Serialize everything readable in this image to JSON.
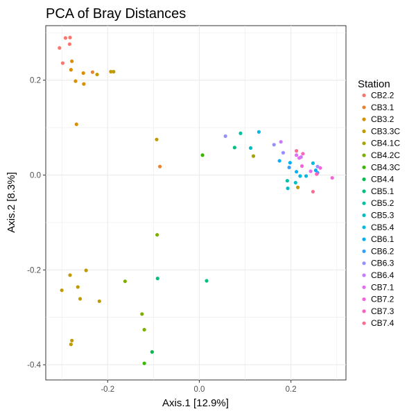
{
  "chart_data": {
    "type": "scatter",
    "title": "PCA of Bray Distances",
    "xlabel": "Axis.1   [12.9%]",
    "ylabel": "Axis.2   [8.3%]",
    "xlim": [
      -0.335,
      0.32
    ],
    "ylim": [
      -0.432,
      0.315
    ],
    "x_ticks": [
      -0.2,
      0.0,
      0.2
    ],
    "x_tick_labels": [
      "-0.2",
      "0.0",
      "0.2"
    ],
    "y_ticks": [
      0.2,
      0.0,
      -0.2,
      -0.4
    ],
    "y_tick_labels": [
      "0.2",
      "0.0",
      "-0.2",
      "-0.4"
    ],
    "grid": true,
    "legend_title": "Station",
    "legend_position": "right",
    "series": [
      {
        "name": "CB2.2",
        "color": "#F8766D",
        "points": [
          [
            -0.305,
            0.268
          ],
          [
            -0.292,
            0.289
          ],
          [
            -0.282,
            0.29
          ],
          [
            -0.298,
            0.236
          ],
          [
            -0.283,
            0.276
          ]
        ]
      },
      {
        "name": "CB3.1",
        "color": "#EA8331",
        "points": [
          [
            -0.233,
            0.217
          ],
          [
            -0.086,
            0.018
          ]
        ]
      },
      {
        "name": "CB3.2",
        "color": "#D89000",
        "points": [
          [
            -0.278,
            0.24
          ],
          [
            -0.253,
            0.215
          ],
          [
            -0.252,
            0.192
          ],
          [
            -0.27,
            0.198
          ],
          [
            -0.28,
            0.222
          ],
          [
            -0.268,
            0.107
          ]
        ]
      },
      {
        "name": "CB3.3C",
        "color": "#C09B00",
        "points": [
          [
            -0.193,
            0.218
          ],
          [
            -0.187,
            0.218
          ],
          [
            -0.223,
            0.212
          ],
          [
            -0.093,
            0.075
          ],
          [
            -0.3,
            -0.243
          ],
          [
            -0.282,
            -0.211
          ],
          [
            -0.247,
            -0.201
          ],
          [
            -0.265,
            -0.236
          ],
          [
            -0.26,
            -0.261
          ],
          [
            -0.218,
            -0.266
          ],
          [
            -0.278,
            -0.349
          ],
          [
            -0.28,
            -0.357
          ],
          [
            0.215,
            -0.026
          ]
        ]
      },
      {
        "name": "CB4.1C",
        "color": "#A3A500",
        "points": [
          [
            0.118,
            0.04
          ]
        ]
      },
      {
        "name": "CB4.2C",
        "color": "#7CAE00",
        "points": [
          [
            -0.092,
            -0.126
          ],
          [
            -0.162,
            -0.224
          ],
          [
            -0.125,
            -0.293
          ],
          [
            -0.12,
            -0.326
          ]
        ]
      },
      {
        "name": "CB4.3C",
        "color": "#39B600",
        "points": [
          [
            0.007,
            0.042
          ],
          [
            -0.12,
            -0.397
          ]
        ]
      },
      {
        "name": "CB4.4",
        "color": "#00BB4E",
        "points": [
          [
            -0.103,
            -0.373
          ]
        ]
      },
      {
        "name": "CB5.1",
        "color": "#00BF7D",
        "points": [
          [
            0.077,
            0.058
          ],
          [
            -0.091,
            -0.218
          ],
          [
            0.016,
            -0.223
          ]
        ]
      },
      {
        "name": "CB5.2",
        "color": "#00C1A3",
        "points": [
          [
            0.09,
            0.088
          ],
          [
            0.192,
            -0.012
          ]
        ]
      },
      {
        "name": "CB5.3",
        "color": "#00BFC4",
        "points": [
          [
            0.112,
            0.057
          ],
          [
            0.193,
            -0.028
          ],
          [
            0.21,
            -0.016
          ]
        ]
      },
      {
        "name": "CB5.4",
        "color": "#00BAE0",
        "points": [
          [
            0.13,
            0.091
          ],
          [
            0.22,
            -0.002
          ],
          [
            0.233,
            -0.002
          ],
          [
            0.248,
            0.025
          ]
        ]
      },
      {
        "name": "CB6.1",
        "color": "#00B0F6",
        "points": [
          [
            0.175,
            0.03
          ],
          [
            0.198,
            0.026
          ],
          [
            0.212,
            0.007
          ],
          [
            0.254,
            0.01
          ]
        ]
      },
      {
        "name": "CB6.2",
        "color": "#35A2FF",
        "points": [
          [
            0.196,
            0.016
          ],
          [
            0.258,
            0.005
          ]
        ]
      },
      {
        "name": "CB6.3",
        "color": "#9590FF",
        "points": [
          [
            0.057,
            0.082
          ],
          [
            0.163,
            0.064
          ],
          [
            0.183,
            0.047
          ],
          [
            0.258,
            0.018
          ]
        ]
      },
      {
        "name": "CB6.4",
        "color": "#C77CFF",
        "points": [
          [
            0.178,
            0.07
          ],
          [
            0.222,
            0.038
          ]
        ]
      },
      {
        "name": "CB7.1",
        "color": "#E76BF3",
        "points": [
          [
            0.212,
            0.042
          ],
          [
            0.218,
            0.036
          ],
          [
            0.243,
            0.008
          ]
        ]
      },
      {
        "name": "CB7.2",
        "color": "#FA62DB",
        "points": [
          [
            0.224,
            0.019
          ],
          [
            0.264,
            0.015
          ],
          [
            0.29,
            -0.006
          ]
        ]
      },
      {
        "name": "CB7.3",
        "color": "#FF62BC",
        "points": [
          [
            0.226,
            0.045
          ],
          [
            0.256,
            0.002
          ]
        ]
      },
      {
        "name": "CB7.4",
        "color": "#FF6C91",
        "points": [
          [
            0.212,
            0.051
          ],
          [
            0.248,
            -0.035
          ]
        ]
      }
    ]
  }
}
